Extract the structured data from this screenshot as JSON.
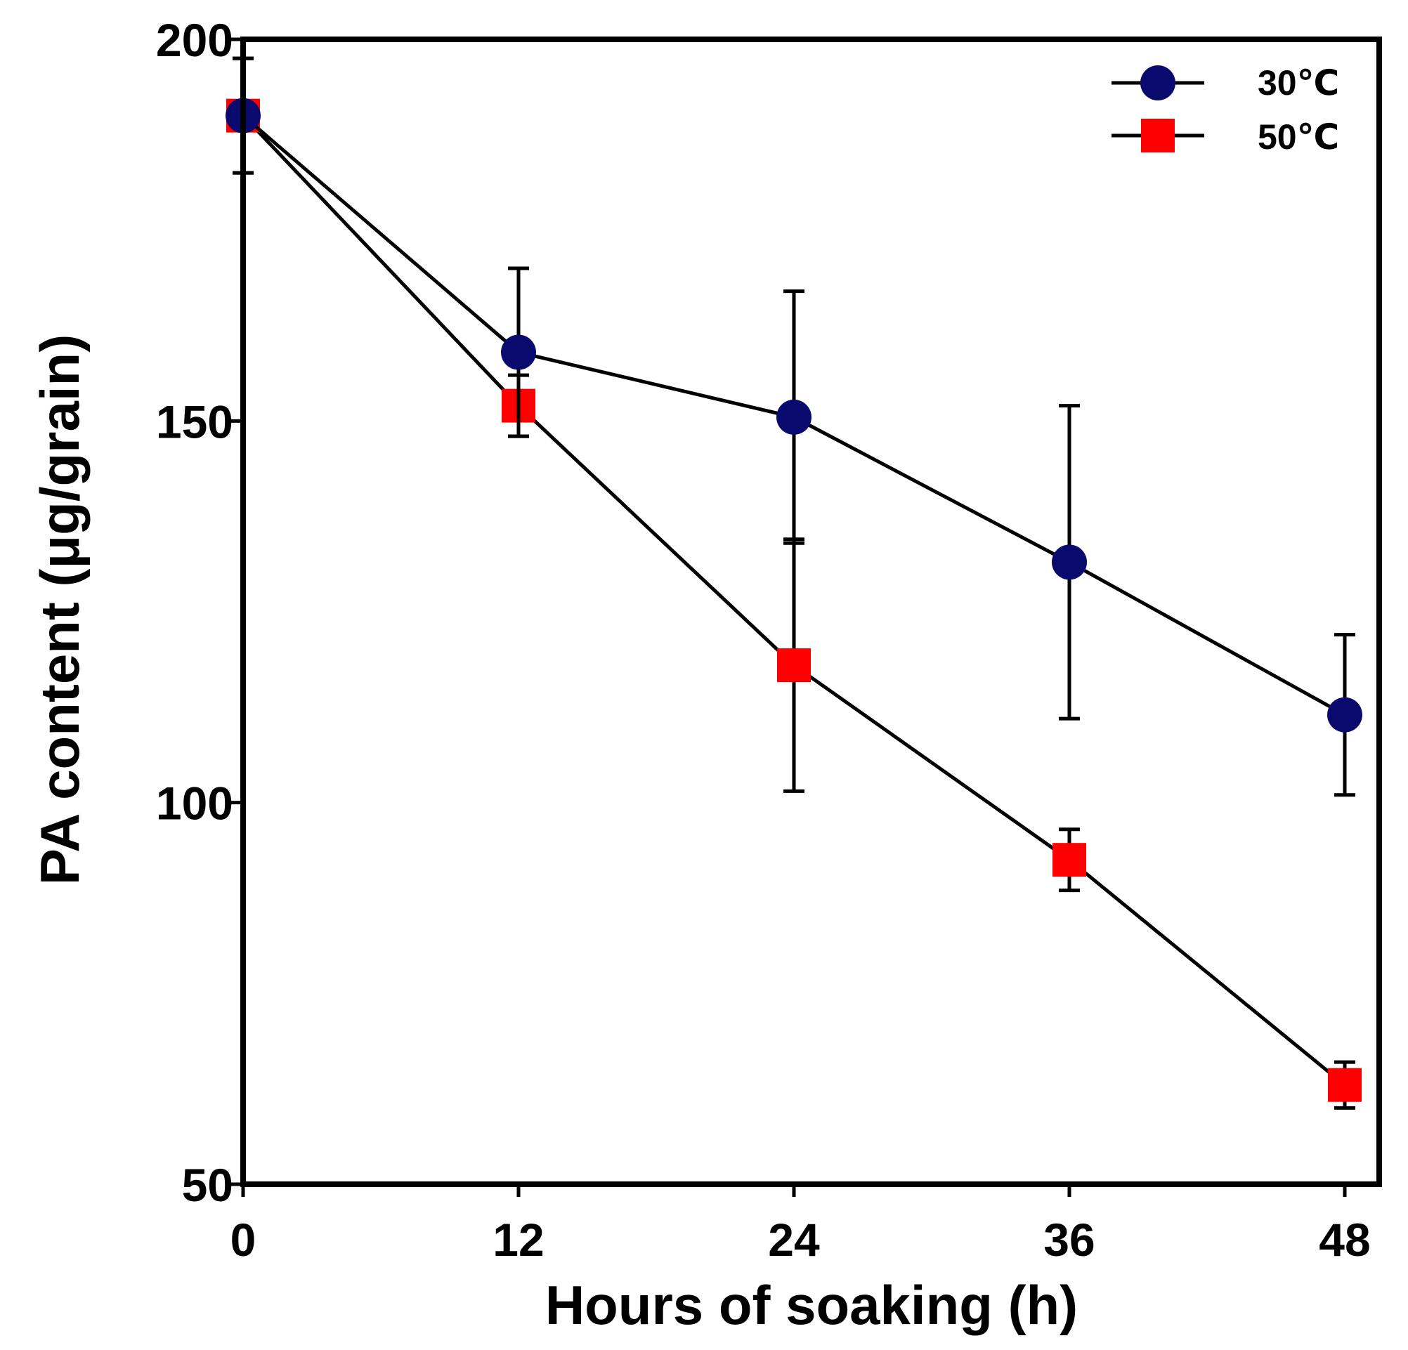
{
  "chart_data": {
    "type": "line",
    "title": "",
    "xlabel": "Hours of soaking (h)",
    "ylabel": "PA content (μg/grain)",
    "x": [
      0,
      12,
      24,
      36,
      48
    ],
    "xlim": [
      0,
      49.5
    ],
    "ylim": [
      50,
      200
    ],
    "xticks": [
      0,
      12,
      24,
      36,
      48
    ],
    "xtick_labels": [
      "0",
      "12",
      "24",
      "36",
      "48"
    ],
    "yticks": [
      50,
      100,
      150,
      200
    ],
    "ytick_labels": [
      "50",
      "100",
      "150",
      "200"
    ],
    "grid": false,
    "legend_position": "top-right",
    "series": [
      {
        "name": "30℃",
        "marker": "circle",
        "color": "#0a0a6e",
        "values": [
          190,
          159,
          150.5,
          131.5,
          111.5
        ],
        "error": [
          7.5,
          11,
          16.5,
          20.5,
          10.5
        ]
      },
      {
        "name": "50℃",
        "marker": "square",
        "color": "#ff0000",
        "values": [
          190,
          152,
          118,
          92.5,
          63
        ],
        "error": [
          7.5,
          4,
          16.5,
          4,
          3
        ]
      }
    ]
  }
}
